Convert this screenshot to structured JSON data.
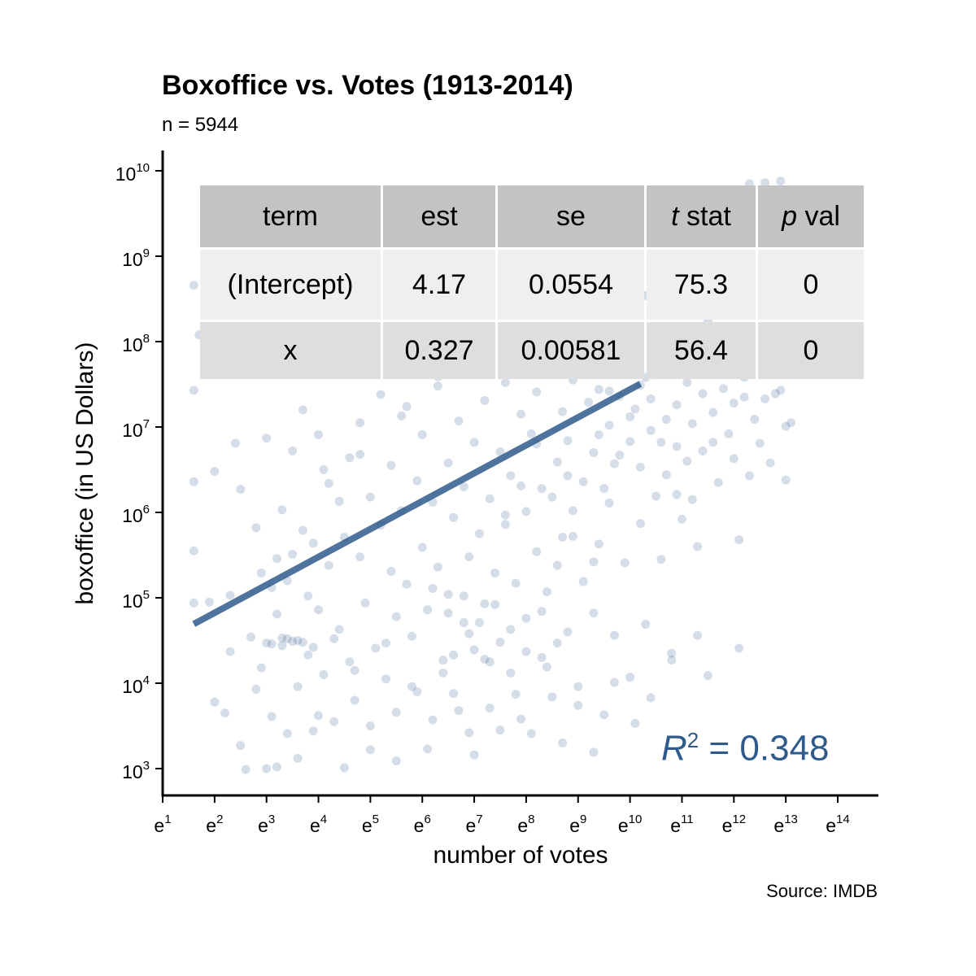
{
  "chart_data": {
    "type": "scatter",
    "title": "Boxoffice vs. Votes (1913-2014)",
    "subtitle": "n = 5944",
    "caption": "Source: IMDB",
    "xlabel": "number of votes",
    "ylabel": "boxoffice (in US Dollars)",
    "x_scale": "ln (natural log axis, ticks labeled as powers of e)",
    "y_scale": "log10",
    "x_range_log_e": [
      1,
      14.8
    ],
    "y_range_log10": [
      2.6,
      10.3
    ],
    "x_ticks": [
      {
        "base": "e",
        "exp": "1"
      },
      {
        "base": "e",
        "exp": "2"
      },
      {
        "base": "e",
        "exp": "3"
      },
      {
        "base": "e",
        "exp": "4"
      },
      {
        "base": "e",
        "exp": "5"
      },
      {
        "base": "e",
        "exp": "6"
      },
      {
        "base": "e",
        "exp": "7"
      },
      {
        "base": "e",
        "exp": "8"
      },
      {
        "base": "e",
        "exp": "9"
      },
      {
        "base": "e",
        "exp": "10"
      },
      {
        "base": "e",
        "exp": "11"
      },
      {
        "base": "e",
        "exp": "12"
      },
      {
        "base": "e",
        "exp": "13"
      },
      {
        "base": "e",
        "exp": "14"
      }
    ],
    "y_ticks": [
      {
        "base": "10",
        "exp": "3"
      },
      {
        "base": "10",
        "exp": "4"
      },
      {
        "base": "10",
        "exp": "5"
      },
      {
        "base": "10",
        "exp": "6"
      },
      {
        "base": "10",
        "exp": "7"
      },
      {
        "base": "10",
        "exp": "8"
      },
      {
        "base": "10",
        "exp": "9"
      },
      {
        "base": "10",
        "exp": "10"
      }
    ],
    "grid": false,
    "point_color": "#2f5a8c",
    "point_opacity": 0.2,
    "regression_line": {
      "color": "#2f5a8c",
      "intercept": 4.17,
      "slope": 0.327,
      "x_from_log_e": 1.6,
      "x_to_log_e": 10.2
    },
    "r_squared": {
      "label": "R",
      "sup": "2",
      "value_text": "= 0.348"
    },
    "stats_table": {
      "headers": [
        {
          "italic": "",
          "text": "term"
        },
        {
          "italic": "",
          "text": "est"
        },
        {
          "italic": "",
          "text": "se"
        },
        {
          "italic": "t",
          "text": " stat"
        },
        {
          "italic": "p",
          "text": " val"
        }
      ],
      "rows": [
        [
          "(Intercept)",
          "4.17",
          "0.0554",
          "75.3",
          "0"
        ],
        [
          "x",
          "0.327",
          "0.00581",
          "56.4",
          "0"
        ]
      ]
    },
    "sample_points_note_free": null,
    "points": [
      [
        1.6,
        4.94
      ],
      [
        1.6,
        5.55
      ],
      [
        1.6,
        6.36
      ],
      [
        1.7,
        8.08
      ],
      [
        1.9,
        4.95
      ],
      [
        2.0,
        6.48
      ],
      [
        2.2,
        3.65
      ],
      [
        2.3,
        4.37
      ],
      [
        2.4,
        6.81
      ],
      [
        2.5,
        3.27
      ],
      [
        2.5,
        6.27
      ],
      [
        2.6,
        7.84
      ],
      [
        2.7,
        4.54
      ],
      [
        2.8,
        3.93
      ],
      [
        2.8,
        5.82
      ],
      [
        2.9,
        5.29
      ],
      [
        3.0,
        3.0
      ],
      [
        3.0,
        6.87
      ],
      [
        3.1,
        4.46
      ],
      [
        3.1,
        5.12
      ],
      [
        3.2,
        3.02
      ],
      [
        3.2,
        4.81
      ],
      [
        3.3,
        6.03
      ],
      [
        3.4,
        3.41
      ],
      [
        3.4,
        5.2
      ],
      [
        3.5,
        4.49
      ],
      [
        3.5,
        6.72
      ],
      [
        3.6,
        3.96
      ],
      [
        3.7,
        5.79
      ],
      [
        3.7,
        7.2
      ],
      [
        3.8,
        4.33
      ],
      [
        3.9,
        3.44
      ],
      [
        3.9,
        5.64
      ],
      [
        4.0,
        4.86
      ],
      [
        4.0,
        6.91
      ],
      [
        4.1,
        4.1
      ],
      [
        4.2,
        5.38
      ],
      [
        4.2,
        6.34
      ],
      [
        4.3,
        3.55
      ],
      [
        4.4,
        4.63
      ],
      [
        4.4,
        6.13
      ],
      [
        4.5,
        5.71
      ],
      [
        4.6,
        4.25
      ],
      [
        4.6,
        6.64
      ],
      [
        4.7,
        3.8
      ],
      [
        4.8,
        5.48
      ],
      [
        4.8,
        7.05
      ],
      [
        4.9,
        4.94
      ],
      [
        5.0,
        3.22
      ],
      [
        5.0,
        6.18
      ],
      [
        5.1,
        4.41
      ],
      [
        5.2,
        5.85
      ],
      [
        5.2,
        7.38
      ],
      [
        5.3,
        4.05
      ],
      [
        5.4,
        5.31
      ],
      [
        5.4,
        6.55
      ],
      [
        5.5,
        3.66
      ],
      [
        5.5,
        4.78
      ],
      [
        5.6,
        6.02
      ],
      [
        5.7,
        5.16
      ],
      [
        5.7,
        7.24
      ],
      [
        5.8,
        4.55
      ],
      [
        5.9,
        6.37
      ],
      [
        5.9,
        3.9
      ],
      [
        6.0,
        5.59
      ],
      [
        6.0,
        6.91
      ],
      [
        6.1,
        4.86
      ],
      [
        6.2,
        3.57
      ],
      [
        6.2,
        6.12
      ],
      [
        6.3,
        5.36
      ],
      [
        6.3,
        7.48
      ],
      [
        6.4,
        4.27
      ],
      [
        6.5,
        6.58
      ],
      [
        6.5,
        5.04
      ],
      [
        6.6,
        3.88
      ],
      [
        6.6,
        5.94
      ],
      [
        6.7,
        7.07
      ],
      [
        6.8,
        4.71
      ],
      [
        6.8,
        6.3
      ],
      [
        6.9,
        5.48
      ],
      [
        6.9,
        3.42
      ],
      [
        7.0,
        6.82
      ],
      [
        7.0,
        4.39
      ],
      [
        7.1,
        5.75
      ],
      [
        7.2,
        7.31
      ],
      [
        7.2,
        4.93
      ],
      [
        7.3,
        6.16
      ],
      [
        7.3,
        3.71
      ],
      [
        7.4,
        5.29
      ],
      [
        7.5,
        6.71
      ],
      [
        7.5,
        4.48
      ],
      [
        7.6,
        7.52
      ],
      [
        7.6,
        5.86
      ],
      [
        7.7,
        4.12
      ],
      [
        7.7,
        6.43
      ],
      [
        7.8,
        5.17
      ],
      [
        7.9,
        7.15
      ],
      [
        7.9,
        3.58
      ],
      [
        8.0,
        6.01
      ],
      [
        8.0,
        4.76
      ],
      [
        8.1,
        6.92
      ],
      [
        8.2,
        5.54
      ],
      [
        8.2,
        7.41
      ],
      [
        8.3,
        4.3
      ],
      [
        8.3,
        6.28
      ],
      [
        8.4,
        5.07
      ],
      [
        8.5,
        7.63
      ],
      [
        8.5,
        3.84
      ],
      [
        8.6,
        6.59
      ],
      [
        8.6,
        5.38
      ],
      [
        8.7,
        7.18
      ],
      [
        8.8,
        4.6
      ],
      [
        8.8,
        6.84
      ],
      [
        8.9,
        5.72
      ],
      [
        8.9,
        7.55
      ],
      [
        9.0,
        3.96
      ],
      [
        9.1,
        6.36
      ],
      [
        9.1,
        5.19
      ],
      [
        9.2,
        7.29
      ],
      [
        9.3,
        4.82
      ],
      [
        9.3,
        6.7
      ],
      [
        9.4,
        5.63
      ],
      [
        9.4,
        7.44
      ],
      [
        9.5,
        3.63
      ],
      [
        9.6,
        6.11
      ],
      [
        9.6,
        7.02
      ],
      [
        9.7,
        4.56
      ],
      [
        9.7,
        6.57
      ],
      [
        9.8,
        7.36
      ],
      [
        9.9,
        5.41
      ],
      [
        9.9,
        7.68
      ],
      [
        10.0,
        4.07
      ],
      [
        10.0,
        6.83
      ],
      [
        10.1,
        7.21
      ],
      [
        10.2,
        5.87
      ],
      [
        10.2,
        7.49
      ],
      [
        10.3,
        4.69
      ],
      [
        10.4,
        6.96
      ],
      [
        10.4,
        7.33
      ],
      [
        10.5,
        6.19
      ],
      [
        10.5,
        7.61
      ],
      [
        10.6,
        5.45
      ],
      [
        10.7,
        7.09
      ],
      [
        10.7,
        6.44
      ],
      [
        10.8,
        4.35
      ],
      [
        10.9,
        7.26
      ],
      [
        10.9,
        6.77
      ],
      [
        11.0,
        5.92
      ],
      [
        11.1,
        7.52
      ],
      [
        11.1,
        6.6
      ],
      [
        11.2,
        7.04
      ],
      [
        11.3,
        5.6
      ],
      [
        11.4,
        7.39
      ],
      [
        11.4,
        6.72
      ],
      [
        11.5,
        4.09
      ],
      [
        11.6,
        7.17
      ],
      [
        11.7,
        6.35
      ],
      [
        11.8,
        7.45
      ],
      [
        11.9,
        6.92
      ],
      [
        12.0,
        7.28
      ],
      [
        12.1,
        5.68
      ],
      [
        12.2,
        7.58
      ],
      [
        12.3,
        6.43
      ],
      [
        12.4,
        7.09
      ],
      [
        12.5,
        6.81
      ],
      [
        12.6,
        7.33
      ],
      [
        12.7,
        6.58
      ],
      [
        12.9,
        7.43
      ],
      [
        13.0,
        6.38
      ],
      [
        13.1,
        7.05
      ],
      [
        2.0,
        3.78
      ],
      [
        2.3,
        5.03
      ],
      [
        2.6,
        2.99
      ],
      [
        2.9,
        4.18
      ],
      [
        3.1,
        3.61
      ],
      [
        3.3,
        4.53
      ],
      [
        3.6,
        3.12
      ],
      [
        3.8,
        5.02
      ],
      [
        4.0,
        3.62
      ],
      [
        4.3,
        4.52
      ],
      [
        4.5,
        3.01
      ],
      [
        4.7,
        4.15
      ],
      [
        5.0,
        3.5
      ],
      [
        5.3,
        4.47
      ],
      [
        5.5,
        3.09
      ],
      [
        5.8,
        3.96
      ],
      [
        6.1,
        3.23
      ],
      [
        6.4,
        4.12
      ],
      [
        6.7,
        3.68
      ],
      [
        7.0,
        3.16
      ],
      [
        7.2,
        4.28
      ],
      [
        7.5,
        3.45
      ],
      [
        7.8,
        3.87
      ],
      [
        8.1,
        3.41
      ],
      [
        8.4,
        4.19
      ],
      [
        8.7,
        3.3
      ],
      [
        9.0,
        3.74
      ],
      [
        9.3,
        3.19
      ],
      [
        9.7,
        4.01
      ],
      [
        10.1,
        3.53
      ],
      [
        10.4,
        3.83
      ],
      [
        10.8,
        4.27
      ],
      [
        11.3,
        4.56
      ],
      [
        12.1,
        4.41
      ],
      [
        1.6,
        8.66
      ],
      [
        1.6,
        7.43
      ],
      [
        9.0,
        8.82
      ],
      [
        10.3,
        8.54
      ],
      [
        11.5,
        8.24
      ],
      [
        12.6,
        9.86
      ],
      [
        12.9,
        9.88
      ],
      [
        12.3,
        9.85
      ],
      [
        7.6,
        8.61
      ],
      [
        8.6,
        8.03
      ],
      [
        10.7,
        7.87
      ],
      [
        11.9,
        7.93
      ],
      [
        6.3,
        7.59
      ],
      [
        5.6,
        7.13
      ],
      [
        4.8,
        6.68
      ],
      [
        4.1,
        6.5
      ],
      [
        3.5,
        5.51
      ],
      [
        3.2,
        5.46
      ],
      [
        3.4,
        4.52
      ],
      [
        3.0,
        4.47
      ],
      [
        3.7,
        4.48
      ],
      [
        3.3,
        4.44
      ],
      [
        3.6,
        4.5
      ],
      [
        3.9,
        4.42
      ],
      [
        6.2,
        5.11
      ],
      [
        6.5,
        4.82
      ],
      [
        6.8,
        5.02
      ],
      [
        7.1,
        4.71
      ],
      [
        7.4,
        4.92
      ],
      [
        6.9,
        4.58
      ],
      [
        7.7,
        4.63
      ],
      [
        8.0,
        4.37
      ],
      [
        8.3,
        4.84
      ],
      [
        7.3,
        4.25
      ],
      [
        8.6,
        4.47
      ],
      [
        6.6,
        4.33
      ],
      [
        9.4,
        6.91
      ],
      [
        9.6,
        7.42
      ],
      [
        9.8,
        6.67
      ],
      [
        10.0,
        7.12
      ],
      [
        10.3,
        7.58
      ],
      [
        10.6,
        6.82
      ],
      [
        10.1,
        7.87
      ],
      [
        9.2,
        7.66
      ],
      [
        8.8,
        6.43
      ],
      [
        8.5,
        6.18
      ],
      [
        8.2,
        6.8
      ],
      [
        7.9,
        6.31
      ],
      [
        7.6,
        5.97
      ],
      [
        8.9,
        6.02
      ],
      [
        9.5,
        6.28
      ],
      [
        10.2,
        6.53
      ],
      [
        10.9,
        6.21
      ],
      [
        11.2,
        6.15
      ],
      [
        11.6,
        6.82
      ],
      [
        12.0,
        6.63
      ],
      [
        8.4,
        7.85
      ],
      [
        9.1,
        7.93
      ],
      [
        9.9,
        7.97
      ],
      [
        10.6,
        7.92
      ],
      [
        11.3,
        7.88
      ],
      [
        12.2,
        7.35
      ],
      [
        12.8,
        7.39
      ],
      [
        13.0,
        7.01
      ],
      [
        8.7,
        5.71
      ],
      [
        9.3,
        5.42
      ]
    ]
  }
}
